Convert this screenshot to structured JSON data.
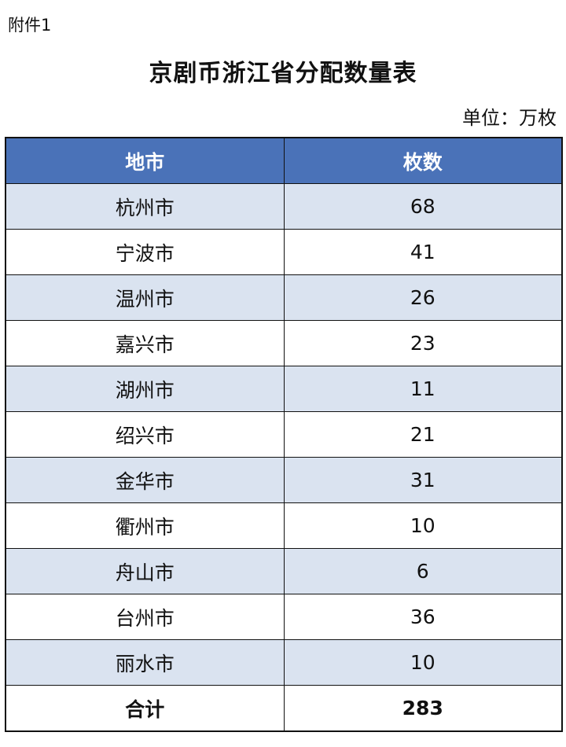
{
  "attachment_label": "附件1",
  "title": "京剧币浙江省分配数量表",
  "unit": "单位：万枚",
  "colors": {
    "header_bg": "#4a72b8",
    "stripe_bg": "#dae3f0"
  },
  "table": {
    "headers": [
      "地市",
      "枚数"
    ],
    "rows": [
      {
        "city": "杭州市",
        "count": "68"
      },
      {
        "city": "宁波市",
        "count": "41"
      },
      {
        "city": "温州市",
        "count": "26"
      },
      {
        "city": "嘉兴市",
        "count": "23"
      },
      {
        "city": "湖州市",
        "count": "11"
      },
      {
        "city": "绍兴市",
        "count": "21"
      },
      {
        "city": "金华市",
        "count": "31"
      },
      {
        "city": "衢州市",
        "count": "10"
      },
      {
        "city": "舟山市",
        "count": "6"
      },
      {
        "city": "台州市",
        "count": "36"
      },
      {
        "city": "丽水市",
        "count": "10"
      }
    ],
    "total": {
      "label": "合计",
      "count": "283"
    }
  }
}
